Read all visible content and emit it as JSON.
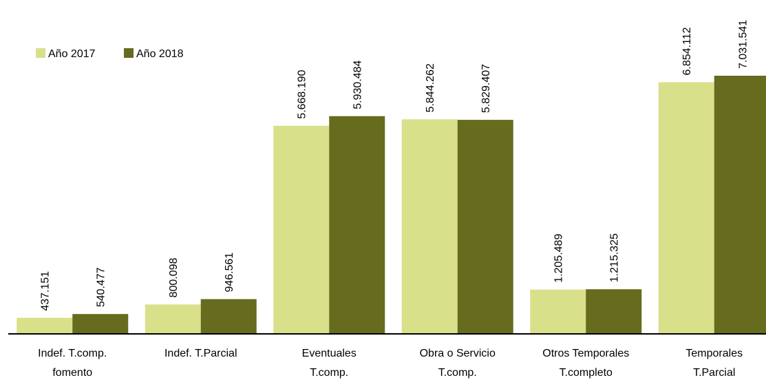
{
  "chart_data": {
    "type": "bar",
    "categories": [
      [
        "Indef. T.comp.",
        "fomento"
      ],
      [
        "Indef. T.Parcial"
      ],
      [
        "Eventuales",
        "T.comp."
      ],
      [
        "Obra o Servicio",
        "T.comp."
      ],
      [
        "Otros Temporales",
        "T.completo"
      ],
      [
        "Temporales",
        "T.Parcial"
      ]
    ],
    "series": [
      {
        "name": "Año 2017",
        "color": "#d9e08a",
        "values": [
          437151,
          800098,
          5668190,
          5844262,
          1205489,
          6854112
        ],
        "value_labels": [
          "437.151",
          "800.098",
          "5.668.190",
          "5.844.262",
          "1.205.489",
          "6.854.112"
        ]
      },
      {
        "name": "Año 2018",
        "color": "#666b1e",
        "values": [
          540477,
          946561,
          5930484,
          5829407,
          1215325,
          7031541
        ],
        "value_labels": [
          "540.477",
          "946.561",
          "5.930.484",
          "5.829.407",
          "1.215.325",
          "7.031.541"
        ]
      }
    ],
    "legend": "top-left"
  }
}
